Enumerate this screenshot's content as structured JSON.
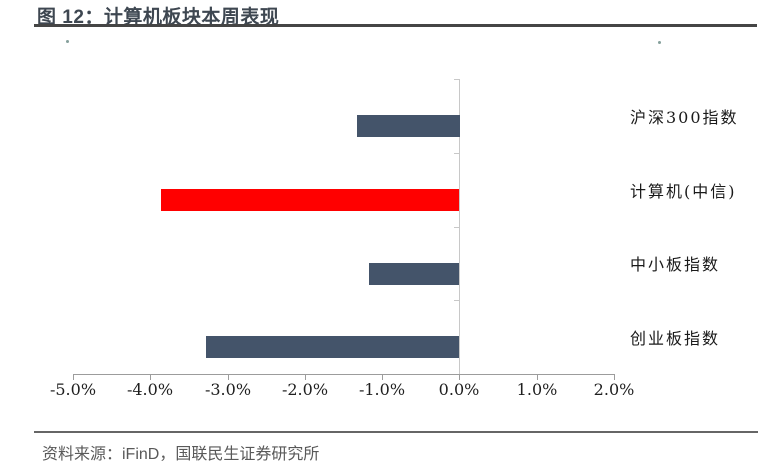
{
  "figure": {
    "title": "图 12：计算机板块本周表现",
    "source_label": "资料来源：iFinD，国联民生证券研究所"
  },
  "colors": {
    "bar_default": "#44546A",
    "bar_highlight": "#FF0000",
    "title_text": "#3E4751",
    "title_rule": "#454545",
    "footer_text": "#595959",
    "footer_rule": "#666666",
    "axis_line": "#9C9C9C",
    "category_axis_line": "#C8C8C8",
    "label_text": "#1A1A1A"
  },
  "chart_data": {
    "type": "bar",
    "orientation": "horizontal",
    "title": "图 12：计算机板块本周表现",
    "categories": [
      "沪深300指数",
      "计算机(中信)",
      "中小板指数",
      "创业板指数"
    ],
    "values": [
      -1.33,
      -3.86,
      -1.17,
      -3.28
    ],
    "bar_colors": [
      "#44546A",
      "#FF0000",
      "#44546A",
      "#44546A"
    ],
    "unit": "percent",
    "xlabel": "",
    "ylabel": "",
    "xlim": [
      -5,
      2
    ],
    "x_tick_values": [
      -5,
      -4,
      -3,
      -2,
      -1,
      0,
      1,
      2
    ],
    "x_tick_labels": [
      "-5.0%",
      "-4.0%",
      "-3.0%",
      "-2.0%",
      "-1.0%",
      "0.0%",
      "1.0%",
      "2.0%"
    ],
    "grid": false,
    "legend": false,
    "highlighted_category": "计算机(中信)"
  }
}
